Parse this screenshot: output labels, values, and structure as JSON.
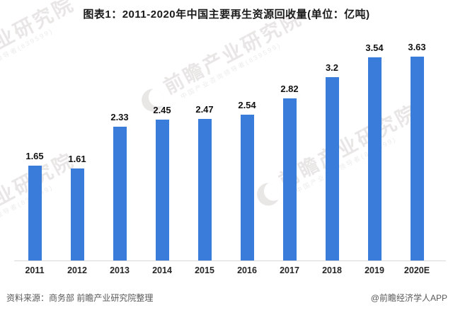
{
  "chart_data": {
    "type": "bar",
    "title": "图表1：2011-2020年中国主要再生资源回收量(单位：亿吨)",
    "categories": [
      "2011",
      "2012",
      "2013",
      "2014",
      "2015",
      "2016",
      "2017",
      "2018",
      "2019",
      "2020E"
    ],
    "values": [
      1.65,
      1.61,
      2.33,
      2.45,
      2.47,
      2.54,
      2.82,
      3.2,
      3.54,
      3.63
    ],
    "value_labels": [
      "1.65",
      "1.61",
      "2.33",
      "2.45",
      "2.47",
      "2.54",
      "2.82",
      "3.2",
      "3.54",
      "3.63"
    ],
    "xlabel": "",
    "ylabel": "",
    "ylim": [
      0,
      3.8
    ],
    "grid": false,
    "legend": "none",
    "y_axis_visible": false,
    "bar_color": "#3A7CD9",
    "axis_line_color": "#d9d9d9"
  },
  "watermark": {
    "text": "前瞻产业研究院",
    "subtext": "中国产业咨询领导者(839599)"
  },
  "footer": {
    "source": "资料来源：商务部 前瞻产业研究院整理",
    "credit": "@前瞻经济学人APP"
  }
}
